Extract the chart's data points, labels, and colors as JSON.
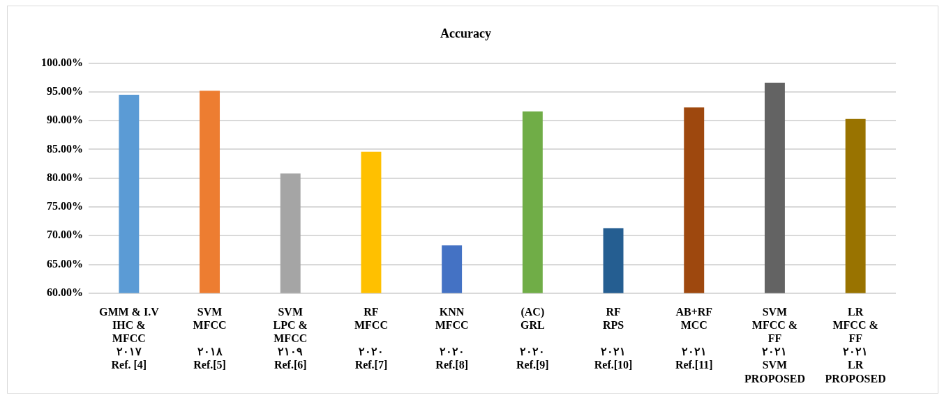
{
  "chart_data": {
    "type": "bar",
    "title": "Accuracy",
    "categories": [
      "GMM & I.V\nIHC &\nMFCC\n٢٠١٧\nRef. [4]",
      "SVM\nMFCC\n\n٢٠١٨\nRef.[5]",
      "SVM\nLPC &\nMFCC\n٢١٠٩\nRef.[6]",
      "RF\nMFCC\n\n٢٠٢٠\nRef.[7]",
      "KNN\nMFCC\n\n٢٠٢٠\nRef.[8]",
      "(AC)\nGRL\n\n٢٠٢٠\nRef.[9]",
      "RF\nRPS\n\n٢٠٢١\nRef.[10]",
      "AB+RF\nMCC\n\n٢٠٢١\nRef.[11]",
      "SVM\nMFCC &\nFF\n٢٠٢١\nSVM\nPROPOSED",
      "LR\nMFCC &\nFF\n٢٠٢١\nLR\nPROPOSED"
    ],
    "values": [
      94.5,
      95.2,
      80.8,
      84.6,
      68.3,
      91.6,
      71.3,
      92.3,
      96.6,
      90.3
    ],
    "colors": [
      "#5b9bd5",
      "#ed7d31",
      "#a5a5a5",
      "#ffc000",
      "#4472c4",
      "#70ad47",
      "#255e91",
      "#9e480e",
      "#636363",
      "#997300"
    ],
    "ylim": [
      60,
      100
    ],
    "yticks": [
      {
        "value": 60,
        "label": "60.00%"
      },
      {
        "value": 65,
        "label": "65.00%"
      },
      {
        "value": 70,
        "label": "70.00%"
      },
      {
        "value": 75,
        "label": "75.00%"
      },
      {
        "value": 80,
        "label": "80.00%"
      },
      {
        "value": 85,
        "label": "85.00%"
      },
      {
        "value": 90,
        "label": "90.00%"
      },
      {
        "value": 95,
        "label": "95.00%"
      },
      {
        "value": 100,
        "label": "100.00%"
      }
    ],
    "grid": "y"
  }
}
